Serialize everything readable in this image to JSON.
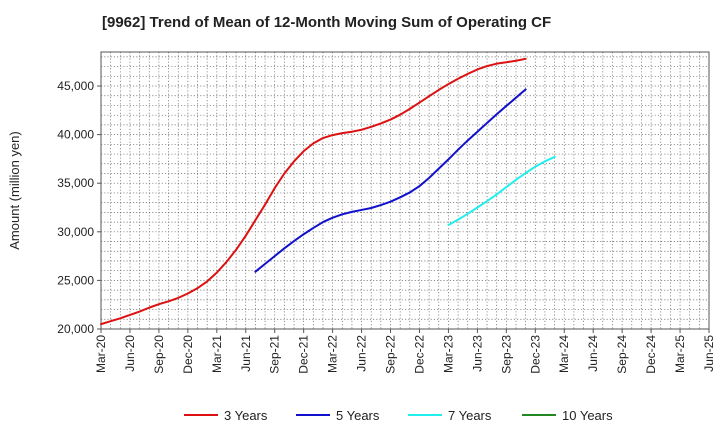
{
  "chart_data": {
    "type": "line",
    "title": "[9962]  Trend of Mean of 12-Month Moving Sum of Operating CF",
    "xlabel": "",
    "ylabel": "Amount (million yen)",
    "ylim": [
      20000,
      48500
    ],
    "grid": true,
    "legend_position": "bottom",
    "x_ticks": [
      "Mar-20",
      "Jun-20",
      "Sep-20",
      "Dec-20",
      "Mar-21",
      "Jun-21",
      "Sep-21",
      "Dec-21",
      "Mar-22",
      "Jun-22",
      "Sep-22",
      "Dec-22",
      "Mar-23",
      "Jun-23",
      "Sep-23",
      "Dec-23",
      "Mar-24",
      "Jun-24",
      "Sep-24",
      "Dec-24",
      "Mar-25",
      "Jun-25"
    ],
    "y_ticks": [
      {
        "value": 20000,
        "label": "20,000"
      },
      {
        "value": 25000,
        "label": "25,000"
      },
      {
        "value": 30000,
        "label": "30,000"
      },
      {
        "value": 35000,
        "label": "35,000"
      },
      {
        "value": 40000,
        "label": "40,000"
      },
      {
        "value": 45000,
        "label": "45,000"
      }
    ],
    "series": [
      {
        "name": "3 Years",
        "color": "#dd1111",
        "start_index": 0,
        "values": [
          20500,
          20800,
          21100,
          21450,
          21800,
          22200,
          22550,
          22850,
          23200,
          23650,
          24200,
          24900,
          25800,
          26900,
          28150,
          29600,
          31200,
          32800,
          34500,
          36000,
          37250,
          38300,
          39100,
          39650,
          39950,
          40150,
          40300,
          40500,
          40800,
          41150,
          41550,
          42050,
          42650,
          43300,
          43950,
          44600,
          45200,
          45750,
          46250,
          46700,
          47050,
          47300,
          47450,
          47600,
          47800
        ]
      },
      {
        "name": "5 Years",
        "color": "#1111cc",
        "start_index": 16,
        "values": [
          25900,
          26700,
          27500,
          28300,
          29050,
          29750,
          30400,
          31000,
          31450,
          31800,
          32050,
          32250,
          32450,
          32750,
          33100,
          33550,
          34050,
          34700,
          35550,
          36500,
          37450,
          38450,
          39400,
          40300,
          41200,
          42100,
          42950,
          43800,
          44650
        ]
      },
      {
        "name": "7 Years",
        "color": "#22eeee",
        "start_index": 36,
        "values": [
          30700,
          31250,
          31850,
          32500,
          33150,
          33850,
          34600,
          35350,
          36050,
          36700,
          37250,
          37700
        ]
      },
      {
        "name": "10 Years",
        "color": "#228822",
        "start_index": 0,
        "values": []
      }
    ]
  }
}
